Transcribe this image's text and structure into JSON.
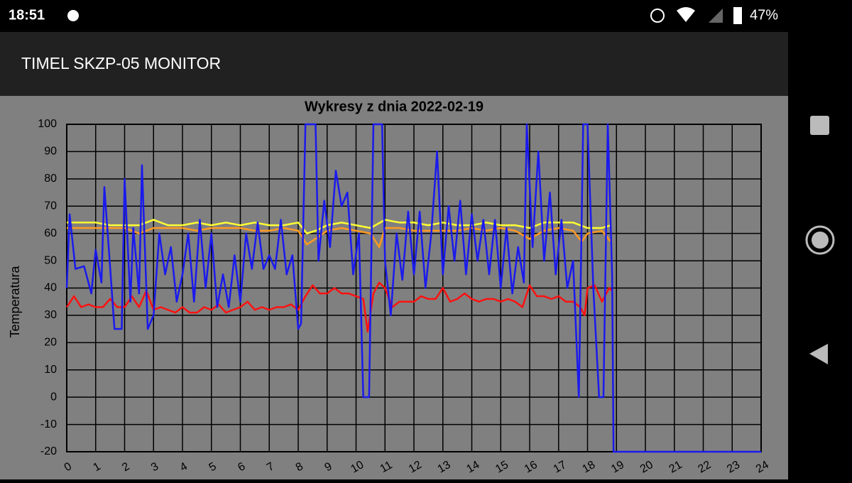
{
  "status_bar": {
    "time": "18:51",
    "battery": "47%"
  },
  "app_bar": {
    "title": "TIMEL SKZP-05 MONITOR"
  },
  "chart_data": {
    "type": "line",
    "title": "Wykresy z dnia 2022-02-19",
    "y_label": "Temperatura",
    "xlim": [
      0,
      24
    ],
    "ylim": [
      -20,
      100
    ],
    "xticks": [
      0,
      1,
      2,
      3,
      4,
      5,
      6,
      7,
      8,
      9,
      10,
      11,
      12,
      13,
      14,
      15,
      16,
      17,
      18,
      19,
      20,
      21,
      22,
      23,
      24
    ],
    "yticks": [
      -20,
      -10,
      0,
      10,
      20,
      30,
      40,
      50,
      60,
      70,
      80,
      90,
      100
    ],
    "grid": true,
    "series": [
      {
        "color": "#ffff33",
        "x": [
          0,
          0.5,
          1,
          1.5,
          2,
          2.5,
          3,
          3.5,
          4,
          4.5,
          5,
          5.5,
          6,
          6.5,
          7,
          7.5,
          8,
          8.3,
          8.6,
          9,
          9.5,
          10,
          10.5,
          11,
          11.5,
          12,
          12.5,
          13,
          13.5,
          14,
          14.5,
          15,
          15.5,
          16,
          16.5,
          17,
          17.5,
          18,
          18.5,
          18.8
        ],
        "values": [
          64,
          64,
          64,
          63,
          63,
          63,
          65,
          63,
          63,
          64,
          63,
          64,
          63,
          64,
          63,
          63,
          64,
          60,
          61,
          63,
          64,
          63,
          62,
          65,
          64,
          64,
          63,
          64,
          63,
          63,
          64,
          63,
          63,
          62,
          64,
          64,
          64,
          62,
          62,
          63
        ]
      },
      {
        "color": "#ff9922",
        "x": [
          0,
          0.5,
          1,
          1.5,
          2,
          2.5,
          3,
          3.5,
          4,
          4.5,
          5,
          5.5,
          6,
          6.5,
          7,
          7.5,
          8,
          8.3,
          8.6,
          9,
          9.5,
          10,
          10.5,
          10.8,
          11,
          11.5,
          12,
          12.5,
          13,
          13.5,
          14,
          14.5,
          15,
          15.5,
          16,
          16.5,
          17,
          17.5,
          17.8,
          18,
          18.5,
          18.8
        ],
        "values": [
          62,
          62,
          62,
          62,
          62,
          60,
          62,
          62,
          62,
          61,
          62,
          62,
          62,
          61,
          61,
          62,
          61,
          56,
          58,
          61,
          62,
          61,
          60,
          55,
          62,
          62,
          61,
          61,
          61,
          61,
          62,
          61,
          62,
          61,
          58,
          61,
          62,
          61,
          57,
          60,
          61,
          57
        ]
      },
      {
        "color": "#ff1111",
        "x": [
          0,
          0.25,
          0.5,
          0.75,
          1,
          1.25,
          1.5,
          1.75,
          2,
          2.25,
          2.5,
          2.75,
          3,
          3.25,
          3.5,
          3.75,
          4,
          4.25,
          4.5,
          4.75,
          5,
          5.25,
          5.5,
          5.75,
          6,
          6.25,
          6.5,
          6.75,
          7,
          7.25,
          7.5,
          7.75,
          8,
          8.25,
          8.5,
          8.75,
          9,
          9.25,
          9.5,
          9.75,
          10,
          10.25,
          10.4,
          10.6,
          10.8,
          11,
          11.25,
          11.5,
          11.75,
          12,
          12.25,
          12.5,
          12.75,
          13,
          13.25,
          13.5,
          13.75,
          14,
          14.25,
          14.5,
          14.75,
          15,
          15.25,
          15.5,
          15.75,
          16,
          16.25,
          16.5,
          16.75,
          17,
          17.25,
          17.5,
          17.75,
          17.9,
          18,
          18.25,
          18.5,
          18.75,
          18.85
        ],
        "values": [
          33,
          37,
          33,
          34,
          33,
          33,
          36,
          33,
          33,
          37,
          33,
          39,
          32,
          33,
          32,
          31,
          33,
          31,
          31,
          33,
          32,
          34,
          31,
          32,
          33,
          35,
          32,
          33,
          32,
          33,
          33,
          34,
          32,
          37,
          41,
          38,
          38,
          40,
          38,
          38,
          37,
          36,
          24,
          38,
          42,
          40,
          33,
          35,
          35,
          35,
          37,
          36,
          36,
          40,
          35,
          36,
          38,
          36,
          35,
          36,
          36,
          35,
          36,
          35,
          33,
          41,
          37,
          37,
          36,
          37,
          35,
          35,
          33,
          30,
          40,
          41,
          35,
          40,
          39
        ]
      },
      {
        "color": "#1a1aee",
        "x": [
          0,
          0.1,
          0.3,
          0.6,
          0.85,
          1,
          1.2,
          1.3,
          1.45,
          1.65,
          1.9,
          2.0,
          2.2,
          2.3,
          2.5,
          2.6,
          2.8,
          3.0,
          3.2,
          3.4,
          3.6,
          3.8,
          4.0,
          4.2,
          4.4,
          4.6,
          4.8,
          5.0,
          5.2,
          5.4,
          5.6,
          5.8,
          6.0,
          6.2,
          6.4,
          6.6,
          6.8,
          7.0,
          7.2,
          7.4,
          7.6,
          7.8,
          8.0,
          8.1,
          8.25,
          8.6,
          8.7,
          8.9,
          9.1,
          9.3,
          9.5,
          9.7,
          9.9,
          10.1,
          10.25,
          10.45,
          10.6,
          10.9,
          11.0,
          11.2,
          11.4,
          11.6,
          11.8,
          12.0,
          12.2,
          12.4,
          12.6,
          12.8,
          13.0,
          13.2,
          13.4,
          13.6,
          13.8,
          14.0,
          14.2,
          14.4,
          14.6,
          14.8,
          15.0,
          15.2,
          15.4,
          15.6,
          15.8,
          15.9,
          16.1,
          16.3,
          16.5,
          16.7,
          16.9,
          17.1,
          17.3,
          17.5,
          17.7,
          17.85,
          18.0,
          18.2,
          18.4,
          18.55,
          18.7,
          18.85,
          18.9,
          24
        ],
        "values": [
          40,
          67,
          47,
          48,
          38,
          54,
          42,
          77,
          55,
          25,
          25,
          80,
          35,
          62,
          38,
          85,
          25,
          30,
          60,
          45,
          55,
          35,
          45,
          60,
          35,
          65,
          40,
          60,
          33,
          45,
          33,
          52,
          35,
          60,
          47,
          64,
          47,
          52,
          47,
          65,
          45,
          52,
          25,
          27,
          100,
          100,
          50,
          72,
          55,
          83,
          70,
          75,
          45,
          60,
          0,
          0,
          100,
          100,
          50,
          30,
          60,
          43,
          68,
          45,
          68,
          40,
          60,
          90,
          45,
          70,
          50,
          72,
          45,
          67,
          50,
          65,
          45,
          65,
          40,
          62,
          38,
          55,
          42,
          100,
          55,
          90,
          50,
          75,
          45,
          65,
          40,
          50,
          0,
          100,
          100,
          40,
          0,
          0,
          100,
          45,
          -20,
          -20
        ]
      }
    ]
  }
}
